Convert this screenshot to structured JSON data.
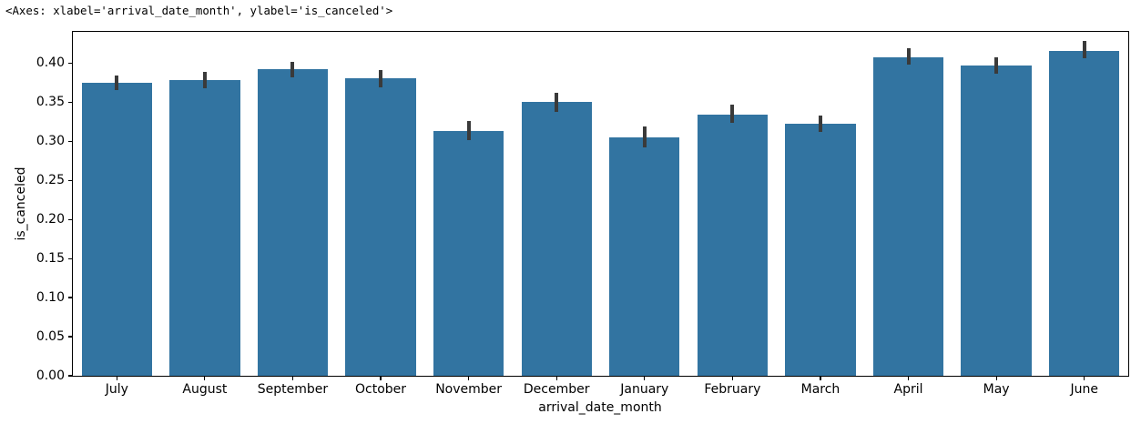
{
  "output_line": "<Axes: xlabel='arrival_date_month', ylabel='is_canceled'>",
  "chart_data": {
    "type": "bar",
    "title": "",
    "xlabel": "arrival_date_month",
    "ylabel": "is_canceled",
    "categories": [
      "July",
      "August",
      "September",
      "October",
      "November",
      "December",
      "January",
      "February",
      "March",
      "April",
      "May",
      "June"
    ],
    "values": [
      0.375,
      0.378,
      0.392,
      0.381,
      0.313,
      0.35,
      0.305,
      0.334,
      0.322,
      0.408,
      0.397,
      0.415
    ],
    "error_bars": {
      "low": [
        0.365,
        0.368,
        0.382,
        0.369,
        0.302,
        0.337,
        0.292,
        0.324,
        0.312,
        0.398,
        0.387,
        0.406
      ],
      "high": [
        0.384,
        0.389,
        0.402,
        0.391,
        0.326,
        0.362,
        0.319,
        0.347,
        0.333,
        0.419,
        0.407,
        0.428
      ]
    },
    "ylim": [
      0,
      0.44
    ],
    "yticks": [
      0.0,
      0.05,
      0.1,
      0.15,
      0.2,
      0.25,
      0.3,
      0.35,
      0.4
    ],
    "grid": false,
    "legend_position": "none",
    "bar_color": "#3274a1",
    "error_color": "#3a3a3a",
    "spine_color": "#000000",
    "background_color": "#ffffff"
  }
}
